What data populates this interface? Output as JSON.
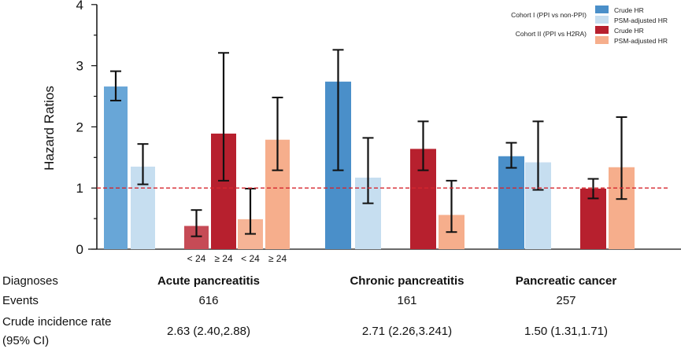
{
  "chart_data": {
    "type": "bar",
    "ylabel": "Hazard Ratios",
    "ylim": [
      0,
      4
    ],
    "yticks": [
      0,
      1,
      2,
      3,
      4
    ],
    "reference_line": 1,
    "legend": {
      "placement": "top-right",
      "groups": [
        {
          "label": "Cohort I (PPI vs non-PPI)",
          "entries": [
            {
              "label": "Crude HR",
              "color": "#4a8fc9"
            },
            {
              "label": "PSM-adjusted HR",
              "color": "#c6def0"
            }
          ]
        },
        {
          "label": "Cohort II  (PPI vs H2RA)",
          "entries": [
            {
              "label": "Crude HR",
              "color": "#b7202e"
            },
            {
              "label": "PSM-adjusted HR",
              "color": "#f6ae8c"
            }
          ]
        }
      ]
    },
    "groups": [
      {
        "name": "Acute pancreatitis",
        "bars": [
          {
            "series": "Cohort I Crude HR",
            "value": 2.66,
            "ci": [
              2.43,
              2.91
            ],
            "color": "#68a6d7"
          },
          {
            "series": "Cohort I PSM-adjusted HR",
            "value": 1.35,
            "ci": [
              1.06,
              1.72
            ],
            "color": "#c6def0"
          },
          {
            "series": "Cohort II Crude HR",
            "sub": "< 24",
            "value": 0.38,
            "ci": [
              0.21,
              0.64
            ],
            "color": "#c64b56"
          },
          {
            "series": "Cohort II Crude HR",
            "sub": "≥ 24",
            "value": 1.89,
            "ci": [
              1.12,
              3.21
            ],
            "color": "#b7202e"
          },
          {
            "series": "Cohort II PSM-adjusted HR",
            "sub": "< 24",
            "value": 0.49,
            "ci": [
              0.25,
              0.99
            ],
            "color": "#f6b496"
          },
          {
            "series": "Cohort II PSM-adjusted HR",
            "sub": "≥ 24",
            "value": 1.79,
            "ci": [
              1.29,
              2.48
            ],
            "color": "#f6ae8c"
          }
        ]
      },
      {
        "name": "Chronic pancreatitis",
        "bars": [
          {
            "series": "Cohort I Crude HR",
            "value": 2.74,
            "ci": [
              1.29,
              3.26
            ],
            "color": "#4a8fc9"
          },
          {
            "series": "Cohort I PSM-adjusted HR",
            "value": 1.17,
            "ci": [
              0.75,
              1.82
            ],
            "color": "#c6def0"
          },
          {
            "series": "Cohort II Crude HR",
            "value": 1.64,
            "ci": [
              1.29,
              2.09
            ],
            "color": "#b7202e"
          },
          {
            "series": "Cohort II PSM-adjusted HR",
            "value": 0.56,
            "ci": [
              0.28,
              1.12
            ],
            "color": "#f6ae8c"
          }
        ]
      },
      {
        "name": "Pancreatic cancer",
        "bars": [
          {
            "series": "Cohort I Crude HR",
            "value": 1.52,
            "ci": [
              1.33,
              1.74
            ],
            "color": "#4a8fc9"
          },
          {
            "series": "Cohort I PSM-adjusted HR",
            "value": 1.42,
            "ci": [
              0.97,
              2.09
            ],
            "color": "#c6def0"
          },
          {
            "series": "Cohort II Crude HR",
            "value": 0.99,
            "ci": [
              0.83,
              1.15
            ],
            "color": "#b7202e"
          },
          {
            "series": "Cohort II PSM-adjusted HR",
            "value": 1.34,
            "ci": [
              0.82,
              2.16
            ],
            "color": "#f6ae8c"
          }
        ]
      }
    ]
  },
  "table": {
    "row_labels": {
      "diagnoses": "Diagnoses",
      "events": "Events",
      "rate1": "Crude incidence rate",
      "rate2": "(95% CI)"
    },
    "columns": [
      {
        "diagnosis": "Acute pancreatitis",
        "events": "616",
        "rate": "2.63 (2.40,2.88)"
      },
      {
        "diagnosis": "Chronic pancreatitis",
        "events": "161",
        "rate": "2.71 (2.26,3.241)"
      },
      {
        "diagnosis": "Pancreatic cancer",
        "events": "257",
        "rate": "1.50 (1.31,1.71)"
      }
    ]
  }
}
